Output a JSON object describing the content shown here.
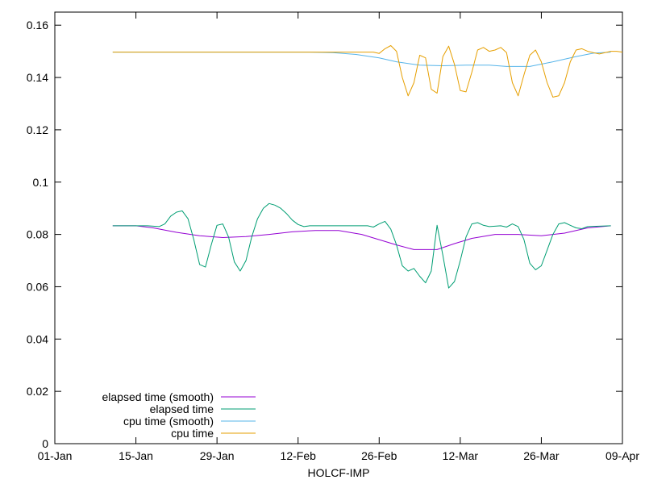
{
  "chart_data": {
    "type": "line",
    "title": "",
    "xlabel": "HOLCF-IMP",
    "ylabel": "",
    "xlim": [
      "2014-01-01",
      "2014-04-09"
    ],
    "ylim": [
      0,
      0.165
    ],
    "x_ticks": [
      "01-Jan",
      "15-Jan",
      "29-Jan",
      "12-Feb",
      "26-Feb",
      "12-Mar",
      "26-Mar",
      "09-Apr"
    ],
    "y_ticks": [
      "0",
      "0.02",
      "0.04",
      "0.06",
      "0.08",
      "0.1",
      "0.12",
      "0.14",
      "0.16"
    ],
    "grid": false,
    "legend_position": "bottom-left",
    "series": [
      {
        "name": "elapsed time (smooth)",
        "color": "#9400d3",
        "points": [
          [
            "2014-01-11",
            0.0833
          ],
          [
            "2014-01-15",
            0.0833
          ],
          [
            "2014-01-18",
            0.0825
          ],
          [
            "2014-01-22",
            0.0808
          ],
          [
            "2014-01-26",
            0.0795
          ],
          [
            "2014-01-30",
            0.0788
          ],
          [
            "2014-02-03",
            0.0792
          ],
          [
            "2014-02-07",
            0.08
          ],
          [
            "2014-02-11",
            0.081
          ],
          [
            "2014-02-15",
            0.0815
          ],
          [
            "2014-02-19",
            0.0815
          ],
          [
            "2014-02-23",
            0.08
          ],
          [
            "2014-02-26",
            0.078
          ],
          [
            "2014-03-01",
            0.076
          ],
          [
            "2014-03-04",
            0.0742
          ],
          [
            "2014-03-08",
            0.0742
          ],
          [
            "2014-03-11",
            0.0765
          ],
          [
            "2014-03-14",
            0.0785
          ],
          [
            "2014-03-18",
            0.08
          ],
          [
            "2014-03-22",
            0.08
          ],
          [
            "2014-03-26",
            0.0795
          ],
          [
            "2014-03-30",
            0.0805
          ],
          [
            "2014-04-03",
            0.0825
          ],
          [
            "2014-04-07",
            0.0833
          ]
        ]
      },
      {
        "name": "elapsed time",
        "color": "#009e73",
        "points": [
          [
            "2014-01-11",
            0.0833
          ],
          [
            "2014-01-17",
            0.0833
          ],
          [
            "2014-01-19",
            0.083
          ],
          [
            "2014-01-20",
            0.084
          ],
          [
            "2014-01-21",
            0.087
          ],
          [
            "2014-01-22",
            0.0885
          ],
          [
            "2014-01-23",
            0.089
          ],
          [
            "2014-01-24",
            0.086
          ],
          [
            "2014-01-25",
            0.078
          ],
          [
            "2014-01-26",
            0.0685
          ],
          [
            "2014-01-27",
            0.0675
          ],
          [
            "2014-01-28",
            0.076
          ],
          [
            "2014-01-29",
            0.0835
          ],
          [
            "2014-01-30",
            0.084
          ],
          [
            "2014-01-31",
            0.079
          ],
          [
            "2014-02-01",
            0.0695
          ],
          [
            "2014-02-02",
            0.066
          ],
          [
            "2014-02-03",
            0.07
          ],
          [
            "2014-02-04",
            0.079
          ],
          [
            "2014-02-05",
            0.086
          ],
          [
            "2014-02-06",
            0.09
          ],
          [
            "2014-02-07",
            0.0918
          ],
          [
            "2014-02-08",
            0.0912
          ],
          [
            "2014-02-09",
            0.09
          ],
          [
            "2014-02-10",
            0.088
          ],
          [
            "2014-02-11",
            0.0855
          ],
          [
            "2014-02-12",
            0.0838
          ],
          [
            "2014-02-13",
            0.083
          ],
          [
            "2014-02-14",
            0.0833
          ],
          [
            "2014-02-24",
            0.0833
          ],
          [
            "2014-02-25",
            0.0828
          ],
          [
            "2014-02-26",
            0.084
          ],
          [
            "2014-02-27",
            0.085
          ],
          [
            "2014-02-28",
            0.082
          ],
          [
            "2014-03-01",
            0.076
          ],
          [
            "2014-03-02",
            0.068
          ],
          [
            "2014-03-03",
            0.066
          ],
          [
            "2014-03-04",
            0.067
          ],
          [
            "2014-03-05",
            0.064
          ],
          [
            "2014-03-06",
            0.0615
          ],
          [
            "2014-03-07",
            0.066
          ],
          [
            "2014-03-08",
            0.0835
          ],
          [
            "2014-03-09",
            0.072
          ],
          [
            "2014-03-10",
            0.0595
          ],
          [
            "2014-03-11",
            0.062
          ],
          [
            "2014-03-12",
            0.07
          ],
          [
            "2014-03-13",
            0.079
          ],
          [
            "2014-03-14",
            0.084
          ],
          [
            "2014-03-15",
            0.0845
          ],
          [
            "2014-03-16",
            0.0835
          ],
          [
            "2014-03-17",
            0.083
          ],
          [
            "2014-03-19",
            0.0833
          ],
          [
            "2014-03-20",
            0.0828
          ],
          [
            "2014-03-21",
            0.084
          ],
          [
            "2014-03-22",
            0.083
          ],
          [
            "2014-03-23",
            0.078
          ],
          [
            "2014-03-24",
            0.069
          ],
          [
            "2014-03-25",
            0.0665
          ],
          [
            "2014-03-26",
            0.068
          ],
          [
            "2014-03-27",
            0.074
          ],
          [
            "2014-03-28",
            0.08
          ],
          [
            "2014-03-29",
            0.084
          ],
          [
            "2014-03-30",
            0.0845
          ],
          [
            "2014-03-31",
            0.0835
          ],
          [
            "2014-04-01",
            0.0825
          ],
          [
            "2014-04-02",
            0.0822
          ],
          [
            "2014-04-03",
            0.083
          ],
          [
            "2014-04-07",
            0.0833
          ]
        ]
      },
      {
        "name": "cpu time (smooth)",
        "color": "#56b4e9",
        "points": [
          [
            "2014-01-11",
            0.1497
          ],
          [
            "2014-02-14",
            0.1497
          ],
          [
            "2014-02-18",
            0.1495
          ],
          [
            "2014-02-22",
            0.1488
          ],
          [
            "2014-02-26",
            0.1475
          ],
          [
            "2014-03-01",
            0.146
          ],
          [
            "2014-03-05",
            0.1447
          ],
          [
            "2014-03-09",
            0.1445
          ],
          [
            "2014-03-13",
            0.1447
          ],
          [
            "2014-03-17",
            0.1447
          ],
          [
            "2014-03-20",
            0.1442
          ],
          [
            "2014-03-24",
            0.1442
          ],
          [
            "2014-03-28",
            0.146
          ],
          [
            "2014-04-01",
            0.148
          ],
          [
            "2014-04-04",
            0.1493
          ],
          [
            "2014-04-07",
            0.1497
          ]
        ]
      },
      {
        "name": "cpu time",
        "color": "#e69f00",
        "points": [
          [
            "2014-01-11",
            0.1497
          ],
          [
            "2014-02-25",
            0.1497
          ],
          [
            "2014-02-26",
            0.1492
          ],
          [
            "2014-02-27",
            0.151
          ],
          [
            "2014-02-28",
            0.1522
          ],
          [
            "2014-03-01",
            0.15
          ],
          [
            "2014-03-02",
            0.14
          ],
          [
            "2014-03-03",
            0.133
          ],
          [
            "2014-03-04",
            0.138
          ],
          [
            "2014-03-05",
            0.1485
          ],
          [
            "2014-03-06",
            0.1475
          ],
          [
            "2014-03-07",
            0.1355
          ],
          [
            "2014-03-08",
            0.134
          ],
          [
            "2014-03-09",
            0.148
          ],
          [
            "2014-03-10",
            0.152
          ],
          [
            "2014-03-11",
            0.145
          ],
          [
            "2014-03-12",
            0.135
          ],
          [
            "2014-03-13",
            0.1345
          ],
          [
            "2014-03-14",
            0.142
          ],
          [
            "2014-03-15",
            0.1505
          ],
          [
            "2014-03-16",
            0.1515
          ],
          [
            "2014-03-17",
            0.15
          ],
          [
            "2014-03-18",
            0.1505
          ],
          [
            "2014-03-19",
            0.1515
          ],
          [
            "2014-03-20",
            0.1495
          ],
          [
            "2014-03-21",
            0.138
          ],
          [
            "2014-03-22",
            0.133
          ],
          [
            "2014-03-23",
            0.141
          ],
          [
            "2014-03-24",
            0.1485
          ],
          [
            "2014-03-25",
            0.1505
          ],
          [
            "2014-03-26",
            0.146
          ],
          [
            "2014-03-27",
            0.138
          ],
          [
            "2014-03-28",
            0.1325
          ],
          [
            "2014-03-29",
            0.133
          ],
          [
            "2014-03-30",
            0.138
          ],
          [
            "2014-03-31",
            0.146
          ],
          [
            "2014-04-01",
            0.1505
          ],
          [
            "2014-04-02",
            0.151
          ],
          [
            "2014-04-03",
            0.15
          ],
          [
            "2014-04-04",
            0.1495
          ],
          [
            "2014-04-05",
            0.149
          ],
          [
            "2014-04-06",
            0.1495
          ],
          [
            "2014-04-07",
            0.15
          ],
          [
            "2014-04-08",
            0.15
          ],
          [
            "2014-04-09",
            0.1497
          ]
        ]
      }
    ]
  }
}
